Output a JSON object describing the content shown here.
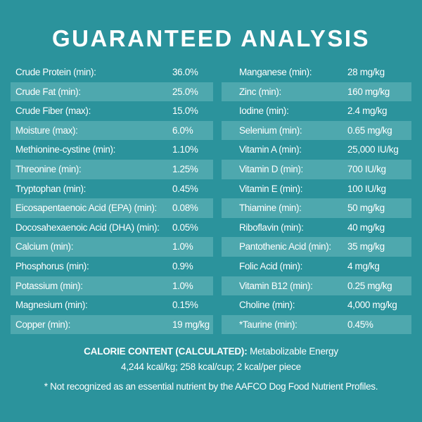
{
  "title": "GUARANTEED ANALYSIS",
  "left_table": {
    "rows": [
      [
        "Crude Protein (min):",
        "36.0%"
      ],
      [
        "Crude Fat (min):",
        "25.0%"
      ],
      [
        "Crude Fiber (max):",
        "15.0%"
      ],
      [
        "Moisture (max):",
        "6.0%"
      ],
      [
        "Methionine-cystine (min):",
        "1.10%"
      ],
      [
        "Threonine (min):",
        "1.25%"
      ],
      [
        "Tryptophan (min):",
        "0.45%"
      ],
      [
        "Eicosapentaenoic Acid (EPA) (min):",
        "0.08%"
      ],
      [
        "Docosahexaenoic Acid (DHA) (min):",
        "0.05%"
      ],
      [
        "Calcium (min):",
        "1.0%"
      ],
      [
        "Phosphorus (min):",
        "0.9%"
      ],
      [
        "Potassium (min):",
        "1.0%"
      ],
      [
        "Magnesium (min):",
        "0.15%"
      ],
      [
        "Copper (min):",
        "19 mg/kg"
      ]
    ]
  },
  "right_table": {
    "rows": [
      [
        "Manganese (min):",
        "28 mg/kg"
      ],
      [
        "Zinc (min):",
        "160 mg/kg"
      ],
      [
        "Iodine (min):",
        "2.4 mg/kg"
      ],
      [
        "Selenium  (min):",
        "0.65 mg/kg"
      ],
      [
        "Vitamin A (min):",
        "25,000 IU/kg"
      ],
      [
        "Vitamin D (min):",
        "700 IU/kg"
      ],
      [
        "Vitamin E (min):",
        "100 IU/kg"
      ],
      [
        "Thiamine (min):",
        "50 mg/kg"
      ],
      [
        "Riboflavin (min):",
        "40 mg/kg"
      ],
      [
        "Pantothenic Acid (min):",
        "35 mg/kg"
      ],
      [
        "Folic Acid (min):",
        "4 mg/kg"
      ],
      [
        "Vitamin B12 (min):",
        "0.25 mg/kg"
      ],
      [
        "Choline (min):",
        "4,000 mg/kg"
      ],
      [
        "*Taurine (min):",
        "0.45%"
      ]
    ]
  },
  "calorie": {
    "label": "CALORIE CONTENT (CALCULATED):",
    "line1": "Metabolizable Energy",
    "line2": "4,244 kcal/kg; 258 kcal/cup; 2 kcal/per piece"
  },
  "footnote": "* Not recognized as an essential nutrient by the AAFCO Dog Food Nutrient Profiles."
}
